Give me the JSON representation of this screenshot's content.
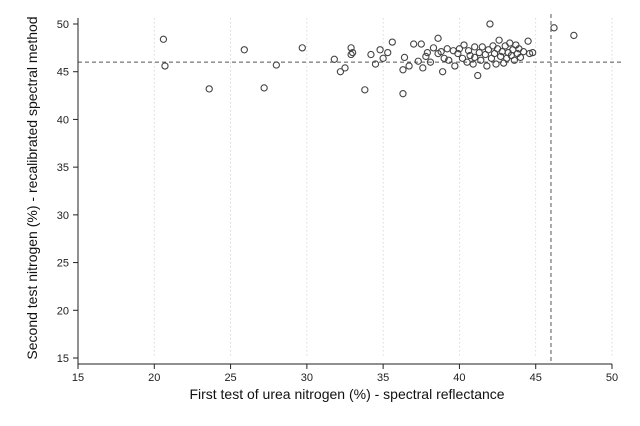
{
  "chart_data": {
    "type": "scatter",
    "xlabel": "First test of urea nitrogen (%) - spectral reflectance",
    "ylabel": "Second test nitrogen (%) - recalibrated spectral method",
    "xlim": [
      15,
      50
    ],
    "ylim": [
      15,
      50
    ],
    "xticks": [
      15,
      20,
      25,
      30,
      35,
      40,
      45,
      50
    ],
    "yticks": [
      15,
      20,
      25,
      30,
      35,
      40,
      45,
      50
    ],
    "grid": "vertical dotted",
    "reference_lines": {
      "x": 46,
      "y": 46
    },
    "marker": "hollow circle",
    "marker_color": "#444444",
    "series": [
      {
        "points": [
          [
            20.6,
            48.4
          ],
          [
            20.7,
            45.6
          ],
          [
            23.6,
            43.2
          ],
          [
            25.9,
            47.3
          ],
          [
            27.2,
            43.3
          ],
          [
            28.0,
            45.7
          ],
          [
            29.7,
            47.5
          ],
          [
            31.8,
            46.3
          ],
          [
            32.2,
            45.0
          ],
          [
            32.5,
            45.4
          ],
          [
            32.9,
            47.5
          ],
          [
            33.0,
            47.0
          ],
          [
            32.9,
            46.8
          ],
          [
            33.8,
            43.1
          ],
          [
            34.2,
            46.8
          ],
          [
            34.5,
            45.8
          ],
          [
            34.8,
            47.3
          ],
          [
            35.0,
            46.4
          ],
          [
            35.3,
            47.0
          ],
          [
            35.6,
            48.1
          ],
          [
            36.3,
            42.7
          ],
          [
            36.3,
            45.2
          ],
          [
            36.4,
            46.5
          ],
          [
            36.7,
            45.6
          ],
          [
            37.0,
            47.9
          ],
          [
            37.3,
            46.1
          ],
          [
            37.5,
            47.9
          ],
          [
            37.6,
            45.4
          ],
          [
            37.8,
            46.6
          ],
          [
            37.9,
            47.0
          ],
          [
            38.1,
            46.0
          ],
          [
            38.3,
            47.5
          ],
          [
            38.6,
            46.9
          ],
          [
            38.6,
            48.5
          ],
          [
            38.8,
            47.1
          ],
          [
            38.9,
            45.0
          ],
          [
            39.0,
            46.4
          ],
          [
            39.2,
            47.4
          ],
          [
            39.3,
            46.2
          ],
          [
            39.6,
            47.2
          ],
          [
            39.7,
            45.6
          ],
          [
            39.9,
            46.9
          ],
          [
            40.0,
            47.4
          ],
          [
            40.2,
            46.4
          ],
          [
            40.3,
            47.8
          ],
          [
            40.5,
            46.0
          ],
          [
            40.6,
            47.2
          ],
          [
            40.7,
            46.7
          ],
          [
            40.9,
            45.8
          ],
          [
            41.0,
            47.6
          ],
          [
            41.0,
            46.5
          ],
          [
            41.2,
            44.6
          ],
          [
            41.3,
            47.0
          ],
          [
            41.4,
            46.2
          ],
          [
            41.5,
            47.6
          ],
          [
            41.7,
            46.8
          ],
          [
            41.8,
            45.6
          ],
          [
            41.9,
            47.3
          ],
          [
            42.0,
            50.0
          ],
          [
            42.1,
            46.4
          ],
          [
            42.2,
            47.7
          ],
          [
            42.3,
            46.9
          ],
          [
            42.4,
            45.8
          ],
          [
            42.5,
            47.4
          ],
          [
            42.6,
            48.3
          ],
          [
            42.7,
            46.6
          ],
          [
            42.8,
            47.1
          ],
          [
            42.9,
            45.9
          ],
          [
            43.0,
            47.7
          ],
          [
            43.1,
            46.4
          ],
          [
            43.2,
            47.0
          ],
          [
            43.3,
            48.0
          ],
          [
            43.4,
            46.7
          ],
          [
            43.5,
            47.3
          ],
          [
            43.6,
            46.2
          ],
          [
            43.7,
            47.8
          ],
          [
            43.8,
            46.9
          ],
          [
            43.9,
            47.4
          ],
          [
            44.0,
            46.5
          ],
          [
            44.2,
            47.1
          ],
          [
            44.5,
            48.2
          ],
          [
            44.6,
            46.9
          ],
          [
            44.8,
            47.0
          ],
          [
            46.2,
            49.6
          ],
          [
            47.5,
            48.8
          ]
        ]
      }
    ]
  }
}
